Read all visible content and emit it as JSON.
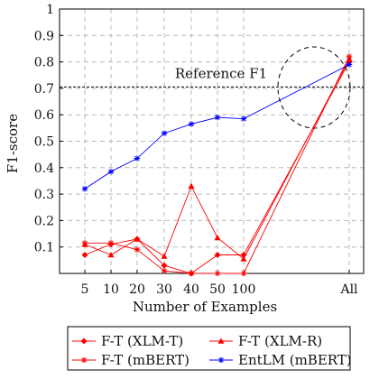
{
  "chart_data": {
    "type": "line",
    "title": "",
    "xlabel": "Number of Examples",
    "ylabel": "F1-score",
    "categories": [
      "5",
      "10",
      "20",
      "30",
      "40",
      "50",
      "100",
      "All"
    ],
    "x_positions": [
      5,
      10,
      20,
      30,
      40,
      50,
      100,
      500
    ],
    "ylim": [
      0,
      1
    ],
    "yticks": [
      "0.1",
      "0.2",
      "0.3",
      "0.4",
      "0.5",
      "0.6",
      "0.7",
      "0.8",
      "0.9",
      "1"
    ],
    "grid": true,
    "legend_position": "bottom",
    "series": [
      {
        "name": "F-T (XLM-T)",
        "color": "#ff0000",
        "marker": "diamond",
        "values": [
          0.07,
          0.11,
          0.13,
          0.03,
          0.0,
          0.07,
          0.07,
          0.8
        ]
      },
      {
        "name": "F-T (XLM-R)",
        "color": "#ff0000",
        "marker": "triangle",
        "values": [
          0.11,
          0.07,
          0.13,
          0.065,
          0.33,
          0.135,
          0.055,
          0.81
        ]
      },
      {
        "name": "F-T (mBERT)",
        "color": "#ff0000",
        "marker": "star",
        "values": [
          0.115,
          0.115,
          0.09,
          0.01,
          0.0,
          0.0,
          0.0,
          0.82
        ]
      },
      {
        "name": "EntLM (mBERT)",
        "color": "#0000ff",
        "marker": "star",
        "values": [
          0.32,
          0.385,
          0.435,
          0.53,
          0.565,
          0.59,
          0.585,
          0.79
        ]
      }
    ],
    "reference_line": {
      "label": "Reference F1",
      "value": 0.705
    },
    "highlight": "circle around All"
  }
}
